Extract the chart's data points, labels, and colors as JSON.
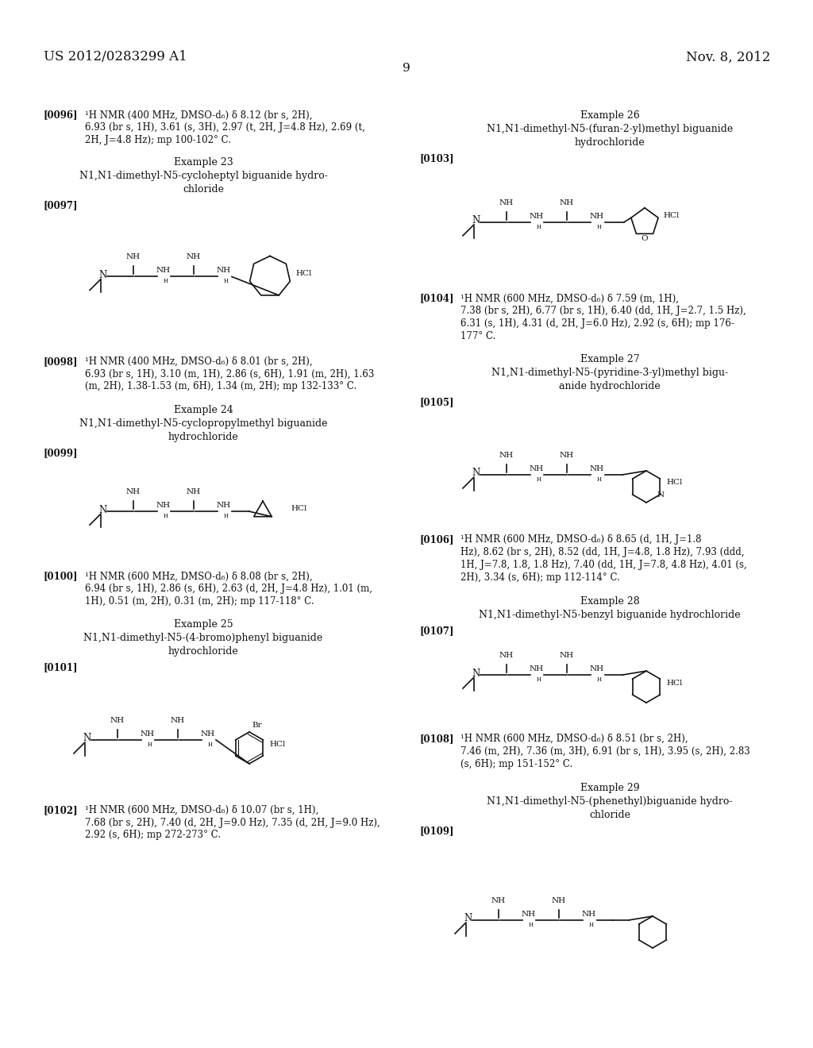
{
  "bg_color": "#ffffff",
  "text_color": "#111111",
  "patent_number": "US 2012/0283299 A1",
  "date": "Nov. 8, 2012",
  "page": "9",
  "p0096": "[0096]    ¹H NMR (400 MHz, DMSO-d₆) δ 8.12 (br s, 2H),\n6.93 (br s, 1H), 3.61 (s, 3H), 2.97 (t, 2H, J=4.8 Hz), 2.69 (t,\n2H, J=4.8 Hz); mp 100-102° C.",
  "ex23_title": "Example 23",
  "ex23_name1": "N1,N1-dimethyl-N5-cycloheptyl biguanide hydro-",
  "ex23_name2": "chloride",
  "p0097": "[0097]",
  "p0098_tag": "[0098]",
  "p0098": "¹H NMR (400 MHz, DMSO-d₆) δ 8.01 (br s, 2H),\n6.93 (br s, 1H), 3.10 (m, 1H), 2.86 (s, 6H), 1.91 (m, 2H), 1.63\n(m, 2H), 1.38-1.53 (m, 6H), 1.34 (m, 2H); mp 132-133° C.",
  "ex24_title": "Example 24",
  "ex24_name1": "N1,N1-dimethyl-N5-cyclopropylmethyl biguanide",
  "ex24_name2": "hydrochloride",
  "p0099": "[0099]",
  "p0100_tag": "[0100]",
  "p0100": "¹H NMR (600 MHz, DMSO-d₆) δ 8.08 (br s, 2H),\n6.94 (br s, 1H), 2.86 (s, 6H), 2.63 (d, 2H, J=4.8 Hz), 1.01 (m,\n1H), 0.51 (m, 2H), 0.31 (m, 2H); mp 117-118° C.",
  "ex25_title": "Example 25",
  "ex25_name1": "N1,N1-dimethyl-N5-(4-bromo)phenyl biguanide",
  "ex25_name2": "hydrochloride",
  "p0101": "[0101]",
  "p0102_tag": "[0102]",
  "p0102": "¹H NMR (600 MHz, DMSO-d₆) δ 10.07 (br s, 1H),\n7.68 (br s, 2H), 7.40 (d, 2H, J=9.0 Hz), 7.35 (d, 2H, J=9.0 Hz),\n2.92 (s, 6H); mp 272-273° C.",
  "ex26_title": "Example 26",
  "ex26_name1": "N1,N1-dimethyl-N5-(furan-2-yl)methyl biguanide",
  "ex26_name2": "hydrochloride",
  "p0103": "[0103]",
  "p0104_tag": "[0104]",
  "p0104": "¹H NMR (600 MHz, DMSO-d₆) δ 7.59 (m, 1H),\n7.38 (br s, 2H), 6.77 (br s, 1H), 6.40 (dd, 1H, J=2.7, 1.5 Hz),\n6.31 (s, 1H), 4.31 (d, 2H, J=6.0 Hz), 2.92 (s, 6H); mp 176-\n177° C.",
  "ex27_title": "Example 27",
  "ex27_name1": "N1,N1-dimethyl-N5-(pyridine-3-yl)methyl bigu-",
  "ex27_name2": "anide hydrochloride",
  "p0105": "[0105]",
  "p0106_tag": "[0106]",
  "p0106": "¹H NMR (600 MHz, DMSO-d₆) δ 8.65 (d, 1H, J=1.8\nHz), 8.62 (br s, 2H), 8.52 (dd, 1H, J=4.8, 1.8 Hz), 7.93 (ddd,\n1H, J=7.8, 1.8, 1.8 Hz), 7.40 (dd, 1H, J=7.8, 4.8 Hz), 4.01 (s,\n2H), 3.34 (s, 6H); mp 112-114° C.",
  "ex28_title": "Example 28",
  "ex28_name": "N1,N1-dimethyl-N5-benzyl biguanide hydrochloride",
  "p0107": "[0107]",
  "p0108_tag": "[0108]",
  "p0108": "¹H NMR (600 MHz, DMSO-d₆) δ 8.51 (br s, 2H),\n7.46 (m, 2H), 7.36 (m, 3H), 6.91 (br s, 1H), 3.95 (s, 2H), 2.83\n(s, 6H); mp 151-152° C.",
  "ex29_title": "Example 29",
  "ex29_name1": "N1,N1-dimethyl-N5-(phenethyl)biguanide hydro-",
  "ex29_name2": "chloride",
  "p0109": "[0109]"
}
